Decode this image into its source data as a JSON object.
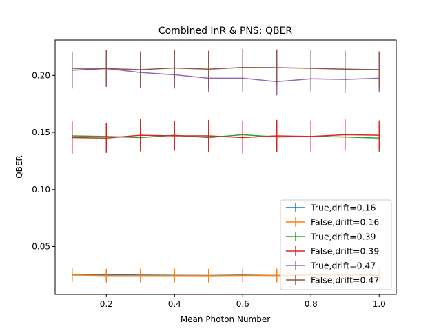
{
  "chart_data": {
    "type": "line",
    "title": "Combined InR & PNS: QBER",
    "xlabel": "Mean Photon Number",
    "ylabel": "QBER",
    "xlim": [
      0.05,
      1.05
    ],
    "ylim": [
      0.008,
      0.231
    ],
    "xticks": [
      0.2,
      0.4,
      0.6,
      0.8,
      1.0
    ],
    "xtick_labels": [
      "0.2",
      "0.4",
      "0.6",
      "0.8",
      "1.0"
    ],
    "yticks": [
      0.05,
      0.1,
      0.15,
      0.2
    ],
    "ytick_labels": [
      "0.05",
      "0.10",
      "0.15",
      "0.20"
    ],
    "grid": false,
    "legend_position": "lower-right",
    "x": [
      0.1,
      0.2,
      0.3,
      0.4,
      0.5,
      0.6,
      0.7,
      0.8,
      0.9,
      1.0
    ],
    "series": [
      {
        "name": "True,drift=0.16",
        "color": "#1f77b4",
        "values": [
          0.025,
          0.0253,
          0.025,
          0.0248,
          0.0246,
          0.025,
          0.0246,
          0.025,
          0.0251,
          0.0248
        ],
        "errors": [
          0.005,
          0.005,
          0.005,
          0.005,
          0.005,
          0.005,
          0.005,
          0.005,
          0.005,
          0.005
        ]
      },
      {
        "name": "False,drift=0.16",
        "color": "#ff7f0e",
        "values": [
          0.025,
          0.0245,
          0.0245,
          0.0245,
          0.0244,
          0.0246,
          0.0246,
          0.025,
          0.0253,
          0.025
        ],
        "errors": [
          0.006,
          0.006,
          0.006,
          0.006,
          0.006,
          0.006,
          0.006,
          0.006,
          0.006,
          0.006
        ]
      },
      {
        "name": "True,drift=0.39",
        "color": "#2ca02c",
        "values": [
          0.147,
          0.1465,
          0.1455,
          0.1475,
          0.1455,
          0.148,
          0.146,
          0.1465,
          0.146,
          0.145
        ],
        "errors": [
          0.012,
          0.012,
          0.012,
          0.012,
          0.012,
          0.012,
          0.012,
          0.012,
          0.012,
          0.012
        ]
      },
      {
        "name": "False,drift=0.39",
        "color": "#d62728",
        "values": [
          0.1455,
          0.145,
          0.1475,
          0.147,
          0.147,
          0.1455,
          0.147,
          0.1465,
          0.148,
          0.1475
        ],
        "errors": [
          0.014,
          0.013,
          0.014,
          0.013,
          0.014,
          0.014,
          0.014,
          0.014,
          0.014,
          0.013
        ]
      },
      {
        "name": "True,drift=0.47",
        "color": "#9467bd",
        "values": [
          0.206,
          0.206,
          0.2025,
          0.2005,
          0.1975,
          0.1975,
          0.1945,
          0.197,
          0.1965,
          0.1975
        ],
        "errors": [
          0.012,
          0.012,
          0.012,
          0.012,
          0.012,
          0.012,
          0.012,
          0.012,
          0.012,
          0.012
        ]
      },
      {
        "name": "False,drift=0.47",
        "color": "#8c564b",
        "values": [
          0.2045,
          0.206,
          0.205,
          0.2065,
          0.2055,
          0.207,
          0.2068,
          0.2062,
          0.2055,
          0.205
        ],
        "errors": [
          0.016,
          0.016,
          0.016,
          0.016,
          0.016,
          0.016,
          0.016,
          0.016,
          0.016,
          0.016
        ]
      }
    ]
  }
}
